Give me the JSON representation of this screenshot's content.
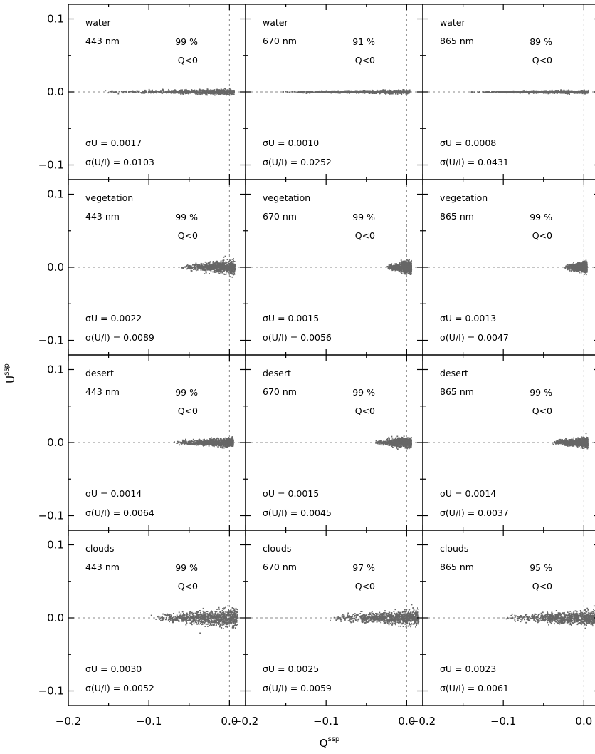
{
  "chart_data": {
    "type": "scatter",
    "xlabel": "Q",
    "xlabel_sup": "ssp",
    "ylabel": "U",
    "ylabel_sup": "ssp",
    "xlim": [
      -0.2,
      0.02
    ],
    "ylim": [
      -0.12,
      0.12
    ],
    "x_ticks": [
      -0.2,
      -0.1,
      0.0
    ],
    "x_tick_labels": [
      "−0.2",
      "−0.1",
      "0.0"
    ],
    "y_ticks": [
      -0.1,
      0.0,
      0.1
    ],
    "y_tick_labels": [
      "−0.1",
      "0.0",
      "0.1"
    ],
    "reference_lines": {
      "x": 0.0,
      "y": 0.0
    },
    "point_color": "#666666",
    "guide_color": "#888888",
    "panels": [
      {
        "scene": "water",
        "wavelength": "443 nm",
        "percent": "99 %",
        "condition": "Q<0",
        "sigma_u": "σU = 0.0017",
        "sigma_ui": "σ(U/I) = 0.0103",
        "q_range": [
          -0.16,
          0.006
        ],
        "u_spread": 0.0017,
        "u_slope": 0.012
      },
      {
        "scene": "water",
        "wavelength": "670 nm",
        "percent": "91 %",
        "condition": "Q<0",
        "sigma_u": "σU = 0.0010",
        "sigma_ui": "σ(U/I) = 0.0252",
        "q_range": [
          -0.16,
          0.004
        ],
        "u_spread": 0.0012,
        "u_slope": 0.012
      },
      {
        "scene": "water",
        "wavelength": "865 nm",
        "percent": "89 %",
        "condition": "Q<0",
        "sigma_u": "σU = 0.0008",
        "sigma_ui": "σ(U/I) = 0.0431",
        "q_range": [
          -0.15,
          0.006
        ],
        "u_spread": 0.001,
        "u_slope": 0.01
      },
      {
        "scene": "vegetation",
        "wavelength": "443 nm",
        "percent": "99 %",
        "condition": "Q<0",
        "sigma_u": "σU = 0.0022",
        "sigma_ui": "σ(U/I) = 0.0089",
        "q_range": [
          -0.06,
          0.007
        ],
        "u_spread": 0.0045,
        "u_slope": 0.0
      },
      {
        "scene": "vegetation",
        "wavelength": "670 nm",
        "percent": "99 %",
        "condition": "Q<0",
        "sigma_u": "σU = 0.0015",
        "sigma_ui": "σ(U/I) = 0.0056",
        "q_range": [
          -0.025,
          0.006
        ],
        "u_spread": 0.004,
        "u_slope": 0.0
      },
      {
        "scene": "vegetation",
        "wavelength": "865 nm",
        "percent": "99 %",
        "condition": "Q<0",
        "sigma_u": "σU = 0.0013",
        "sigma_ui": "σ(U/I) = 0.0047",
        "q_range": [
          -0.025,
          0.004
        ],
        "u_spread": 0.0035,
        "u_slope": 0.0
      },
      {
        "scene": "desert",
        "wavelength": "443 nm",
        "percent": "99 %",
        "condition": "Q<0",
        "sigma_u": "σU = 0.0014",
        "sigma_ui": "σ(U/I) = 0.0064",
        "q_range": [
          -0.07,
          0.005
        ],
        "u_spread": 0.003,
        "u_slope": 0.0
      },
      {
        "scene": "desert",
        "wavelength": "670 nm",
        "percent": "99 %",
        "condition": "Q<0",
        "sigma_u": "σU = 0.0015",
        "sigma_ui": "σ(U/I) = 0.0045",
        "q_range": [
          -0.04,
          0.006
        ],
        "u_spread": 0.0035,
        "u_slope": 0.05
      },
      {
        "scene": "desert",
        "wavelength": "865 nm",
        "percent": "99 %",
        "condition": "Q<0",
        "sigma_u": "σU = 0.0014",
        "sigma_ui": "σ(U/I) = 0.0037",
        "q_range": [
          -0.04,
          0.005
        ],
        "u_spread": 0.003,
        "u_slope": 0.05
      },
      {
        "scene": "clouds",
        "wavelength": "443 nm",
        "percent": "99 %",
        "condition": "Q<0",
        "sigma_u": "σU = 0.0030",
        "sigma_ui": "σ(U/I) = 0.0052",
        "q_range": [
          -0.1,
          0.01
        ],
        "u_spread": 0.006,
        "u_slope": 0.0
      },
      {
        "scene": "clouds",
        "wavelength": "670 nm",
        "percent": "97 %",
        "condition": "Q<0",
        "sigma_u": "σU = 0.0025",
        "sigma_ui": "σ(U/I) = 0.0059",
        "q_range": [
          -0.1,
          0.015
        ],
        "u_spread": 0.005,
        "u_slope": 0.05
      },
      {
        "scene": "clouds",
        "wavelength": "865 nm",
        "percent": "95 %",
        "condition": "Q<0",
        "sigma_u": "σU = 0.0023",
        "sigma_ui": "σ(U/I) = 0.0061",
        "q_range": [
          -0.1,
          0.015
        ],
        "u_spread": 0.005,
        "u_slope": 0.03
      }
    ]
  }
}
